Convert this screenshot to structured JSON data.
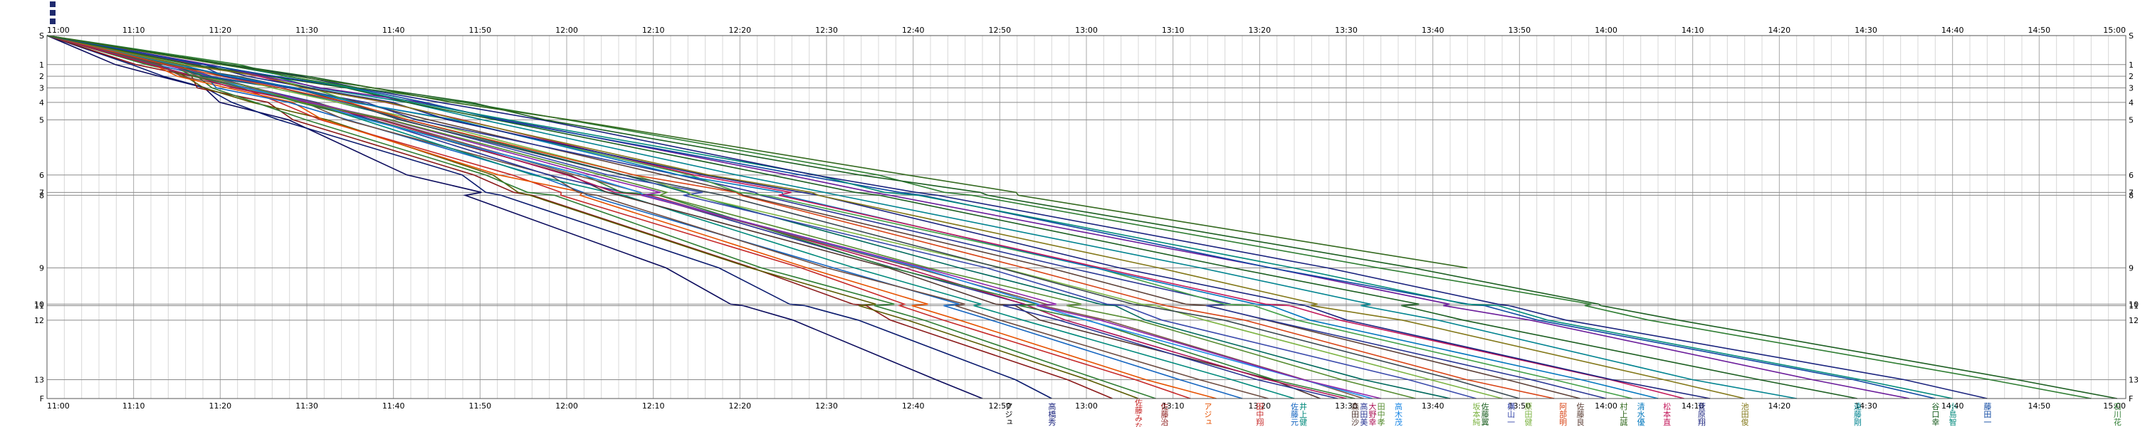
{
  "toolbar": {
    "buttons": [
      "menu-button-1",
      "menu-button-2",
      "menu-button-3"
    ],
    "color": "#1f2a6e"
  },
  "chart_data": {
    "type": "line",
    "title": "",
    "xlabel": "",
    "ylabel": "",
    "grid": true,
    "legend": "none",
    "x_ticks": [
      "11:00",
      "11:10",
      "11:20",
      "11:30",
      "11:40",
      "11:50",
      "12:00",
      "12:10",
      "12:20",
      "12:30",
      "12:40",
      "12:50",
      "13:00",
      "13:10",
      "13:20",
      "13:30",
      "13:40",
      "13:50",
      "14:00",
      "14:10",
      "14:20",
      "14:30",
      "14:40",
      "14:50",
      "15:00"
    ],
    "xlim": [
      "11:00",
      "15:00"
    ],
    "y_checkpoints": [
      {
        "label": "S",
        "d": 0
      },
      {
        "label": "1",
        "d": 1
      },
      {
        "label": "2",
        "d": 1.4
      },
      {
        "label": "3",
        "d": 1.8
      },
      {
        "label": "4",
        "d": 2.3
      },
      {
        "label": "5",
        "d": 2.9
      },
      {
        "label": "6",
        "d": 4.8
      },
      {
        "label": "7",
        "d": 5.4
      },
      {
        "label": "8",
        "d": 5.5
      },
      {
        "label": "9",
        "d": 8.0
      },
      {
        "label": "10",
        "d": 9.25
      },
      {
        "label": "11",
        "d": 9.3
      },
      {
        "label": "12",
        "d": 9.8
      },
      {
        "label": "13",
        "d": 11.85
      },
      {
        "label": "F",
        "d": 12.5
      }
    ],
    "series": [
      {
        "finish": "12:48",
        "color": "#0a0a5c"
      },
      {
        "finish": "12:56",
        "color": "#0a1a6e"
      },
      {
        "finish": "13:03",
        "color": "#8b1a1a"
      },
      {
        "finish": "13:06",
        "color": "#5a5a00"
      },
      {
        "finish": "13:08",
        "color": "#2e7d32"
      },
      {
        "finish": "13:12",
        "color": "#c62828"
      },
      {
        "finish": "13:15",
        "color": "#e65100"
      },
      {
        "finish": "13:18",
        "color": "#1565c0"
      },
      {
        "finish": "13:21",
        "color": "#6d4c41"
      },
      {
        "finish": "13:24",
        "color": "#00897b"
      },
      {
        "finish": "13:27",
        "color": "#4e342e"
      },
      {
        "finish": "13:29",
        "color": "#283593"
      },
      {
        "finish": "13:30",
        "color": "#ad1457"
      },
      {
        "finish": "13:31",
        "color": "#2e7d32"
      },
      {
        "finish": "13:32",
        "color": "#795548"
      },
      {
        "finish": "13:33",
        "color": "#1e88e5"
      },
      {
        "finish": "13:34",
        "color": "#8e24aa"
      },
      {
        "finish": "13:38",
        "color": "#558b2f"
      },
      {
        "finish": "13:42",
        "color": "#00695c"
      },
      {
        "finish": "13:45",
        "color": "#3949ab"
      },
      {
        "finish": "13:48",
        "color": "#7cb342"
      },
      {
        "finish": "13:50",
        "color": "#37474f"
      },
      {
        "finish": "13:54",
        "color": "#d84315"
      },
      {
        "finish": "13:57",
        "color": "#5d4037"
      },
      {
        "finish": "14:00",
        "color": "#283593"
      },
      {
        "finish": "14:03",
        "color": "#43a047"
      },
      {
        "finish": "14:06",
        "color": "#0277bd"
      },
      {
        "finish": "14:09",
        "color": "#c2185b"
      },
      {
        "finish": "14:12",
        "color": "#1a237e"
      },
      {
        "finish": "14:16",
        "color": "#827717"
      },
      {
        "finish": "14:22",
        "color": "#00838f"
      },
      {
        "finish": "14:29",
        "color": "#1b5e20"
      },
      {
        "finish": "14:35",
        "color": "#6a1b9a"
      },
      {
        "finish": "14:38",
        "color": "#0d47a1"
      },
      {
        "finish": "14:40",
        "color": "#00897b"
      },
      {
        "finish": "14:44",
        "color": "#1a237e"
      },
      {
        "finish": "14:56",
        "color": "#2e7d32"
      },
      {
        "finish": "14:59",
        "color": "#1b5e20"
      }
    ],
    "incomplete_series": [
      {
        "last_checkpoint": "9",
        "time": "13:44",
        "color": "#33691e"
      }
    ],
    "finish_labels": [
      {
        "time": "12:51",
        "text": "アジュ",
        "color": "#000000"
      },
      {
        "time": "12:56",
        "text": "高橋秀",
        "color": "#1a237e"
      },
      {
        "time": "13:06",
        "text": "佐藤みな",
        "color": "#c62828"
      },
      {
        "time": "13:09",
        "text": "佐藤治",
        "color": "#8b1a1a"
      },
      {
        "time": "13:14",
        "text": "アジュ",
        "color": "#e65100"
      },
      {
        "time": "13:20",
        "text": "田中翔",
        "color": "#c62828"
      },
      {
        "time": "13:24",
        "text": "佐藤元",
        "color": "#1565c0"
      },
      {
        "time": "13:25",
        "text": "井上健",
        "color": "#00897b"
      },
      {
        "time": "13:31",
        "text": "森田沙",
        "color": "#4e342e"
      },
      {
        "time": "13:32",
        "text": "高田美",
        "color": "#283593"
      },
      {
        "time": "13:33",
        "text": "大野幸",
        "color": "#ad1457"
      },
      {
        "time": "13:34",
        "text": "田中孝",
        "color": "#558b2f"
      },
      {
        "time": "13:36",
        "text": "高木茂",
        "color": "#1e88e5"
      },
      {
        "time": "13:45",
        "text": "坂本純",
        "color": "#7cb342"
      },
      {
        "time": "13:46",
        "text": "佐藤翼",
        "color": "#1b5e20"
      },
      {
        "time": "13:49",
        "text": "横山一",
        "color": "#3949ab"
      },
      {
        "time": "13:51",
        "text": "原田健",
        "color": "#7cb342"
      },
      {
        "time": "13:55",
        "text": "阿部明",
        "color": "#d84315"
      },
      {
        "time": "13:57",
        "text": "佐藤良",
        "color": "#5d4037"
      },
      {
        "time": "14:02",
        "text": "村上誠",
        "color": "#33691e"
      },
      {
        "time": "14:04",
        "text": "清水優",
        "color": "#0277bd"
      },
      {
        "time": "14:07",
        "text": "松本直",
        "color": "#c2185b"
      },
      {
        "time": "14:11",
        "text": "菅原翔",
        "color": "#1a237e"
      },
      {
        "time": "14:16",
        "text": "池田俊",
        "color": "#827717"
      },
      {
        "time": "14:29",
        "text": "遠藤剛",
        "color": "#00838f"
      },
      {
        "time": "14:38",
        "text": "谷口幸",
        "color": "#1b5e20"
      },
      {
        "time": "14:40",
        "text": "小島智",
        "color": "#00897b"
      },
      {
        "time": "14:44",
        "text": "藤田一",
        "color": "#0d47a1"
      },
      {
        "time": "14:59",
        "text": "石川花",
        "color": "#2e7d32"
      }
    ]
  }
}
